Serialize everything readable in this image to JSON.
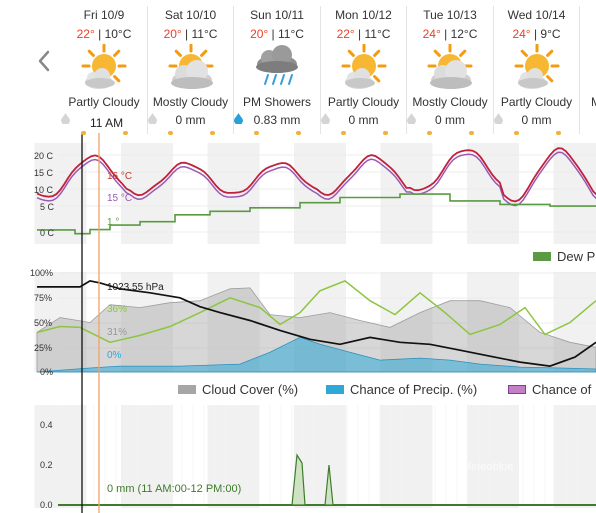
{
  "nav": {
    "prev_icon": "chevron-left-icon"
  },
  "days": [
    {
      "date": "Fri 10/9",
      "hi": "22°",
      "lo": "10°C",
      "icon": "partly-cloudy-icon",
      "condition": "Partly Cloudy",
      "precip": "",
      "precip_type": "dry"
    },
    {
      "date": "Sat 10/10",
      "hi": "20°",
      "lo": "11°C",
      "icon": "mostly-cloudy-icon",
      "condition": "Mostly Cloudy",
      "precip": "0 mm",
      "precip_type": "dry"
    },
    {
      "date": "Sun 10/11",
      "hi": "20°",
      "lo": "11°C",
      "icon": "rain-showers-icon",
      "condition": "PM Showers",
      "precip": "0.83 mm",
      "precip_type": "wet"
    },
    {
      "date": "Mon 10/12",
      "hi": "22°",
      "lo": "11°C",
      "icon": "partly-cloudy-icon",
      "condition": "Partly Cloudy",
      "precip": "0 mm",
      "precip_type": "dry"
    },
    {
      "date": "Tue 10/13",
      "hi": "24°",
      "lo": "12°C",
      "icon": "mostly-cloudy-icon",
      "condition": "Mostly Cloudy",
      "precip": "0 mm",
      "precip_type": "dry"
    },
    {
      "date": "Wed 10/14",
      "hi": "24°",
      "lo": "9°C",
      "icon": "partly-cloudy-icon",
      "condition": "Partly Cloudy",
      "precip": "0 mm",
      "precip_type": "dry"
    }
  ],
  "cursor": {
    "time": "11 AM"
  },
  "temp_chart": {
    "ylabels": [
      "20 C",
      "15 C",
      "10 C",
      "5 C",
      "0 C"
    ],
    "temp_label": "16 °C",
    "feels_label": "15 °C",
    "dew_label": "1 °",
    "legend_dew": "Dew P",
    "colors": {
      "temp": "#c0213c",
      "feels": "#9b59b6",
      "dew": "#5a9a43"
    }
  },
  "atmos_chart": {
    "ylabels": [
      "100%",
      "75%",
      "50%",
      "25%",
      "0%"
    ],
    "pressure_label": "1023.55 hPa",
    "humidity_label": "36%",
    "cloud_label": "31%",
    "precip_label": "0%",
    "legend": {
      "cloud": "Cloud Cover (%)",
      "precip": "Chance of Precip. (%)",
      "third": "Chance of"
    },
    "colors": {
      "cloud": "#a6a6a6",
      "precip": "#2ea8d6",
      "humidity": "#8cc63f",
      "pressure": "#111111"
    }
  },
  "rain_chart": {
    "ylabels": [
      "0.4",
      "0.2",
      "0.0"
    ],
    "amount_label": "0 mm (11 AM:00-12 PM:00)",
    "watermark": "Meteoblue",
    "color": "#3e7b2a"
  }
}
